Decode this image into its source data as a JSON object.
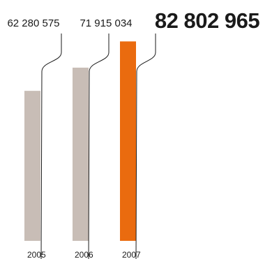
{
  "chart_data": {
    "type": "bar",
    "categories": [
      "2005",
      "2006",
      "2007"
    ],
    "values": [
      62280575,
      71915034,
      82802965
    ],
    "value_labels": [
      "62 280 575",
      "71 915 034",
      "82 802 965"
    ],
    "highlight_index": 2,
    "ylim": [
      0,
      100000000
    ],
    "grid": false,
    "colors": {
      "default_bar": "#c8bdb6",
      "highlight_bar": "#ea6b0f",
      "highlight_text": "#ea6b0f",
      "text": "#1a1a1a",
      "leader": "#1a1a1a"
    }
  }
}
